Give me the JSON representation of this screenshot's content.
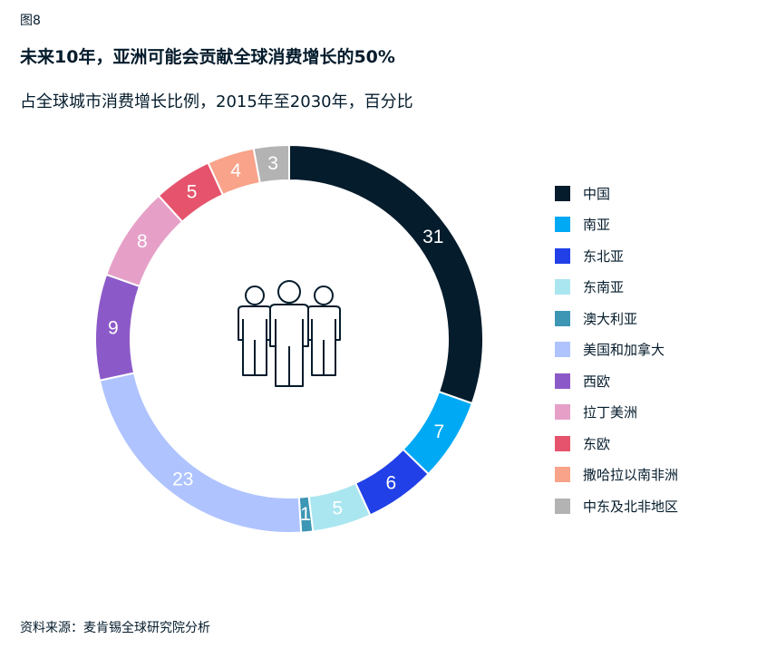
{
  "figure_label": "图8",
  "source_note": "资料来源：麦肯锡全球研究院分析",
  "chart_data": {
    "type": "pie",
    "variant": "donut",
    "title": "未来10年，亚洲可能会贡献全球消费增长的50%",
    "subtitle": "占全球城市消费增长比例，2015年至2030年，百分比",
    "legend_position": "right",
    "center_icon": "people-group-icon",
    "slices": [
      {
        "name": "中国",
        "value": 31,
        "color": "#051c2c"
      },
      {
        "name": "南亚",
        "value": 7,
        "color": "#00a9f4"
      },
      {
        "name": "东北亚",
        "value": 6,
        "color": "#2140e8"
      },
      {
        "name": "东南亚",
        "value": 5,
        "color": "#aae6f0"
      },
      {
        "name": "澳大利亚",
        "value": 1,
        "color": "#3c96b4"
      },
      {
        "name": "美国和加拿大",
        "value": 23,
        "color": "#afc3ff"
      },
      {
        "name": "西欧",
        "value": 9,
        "color": "#8c5ac8"
      },
      {
        "name": "拉丁美洲",
        "value": 8,
        "color": "#e6a0c8"
      },
      {
        "name": "东欧",
        "value": 5,
        "color": "#e5546c"
      },
      {
        "name": "撒哈拉以南非洲",
        "value": 4,
        "color": "#f8a38a"
      },
      {
        "name": "中东及北非地区",
        "value": 3,
        "color": "#b3b3b3"
      }
    ]
  }
}
